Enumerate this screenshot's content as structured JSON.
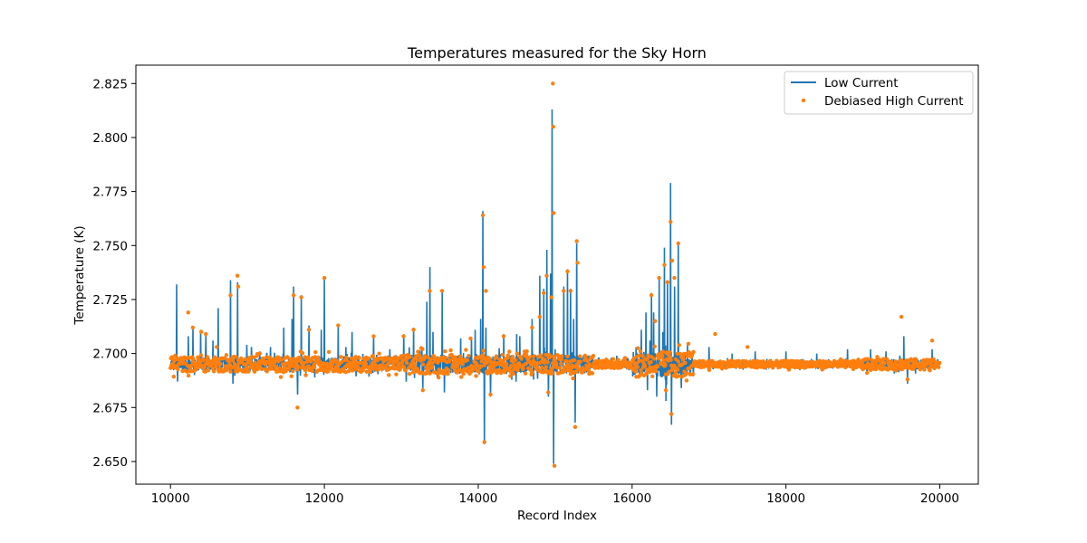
{
  "chart_data": {
    "type": "line",
    "title": "Temperatures measured for the Sky Horn",
    "xlabel": "Record Index",
    "ylabel": "Temperature (K)",
    "xlim": [
      9550,
      20500
    ],
    "ylim": [
      2.6395,
      2.8335
    ],
    "xticks": [
      10000,
      12000,
      14000,
      16000,
      18000,
      20000
    ],
    "xtick_labels": [
      "10000",
      "12000",
      "14000",
      "16000",
      "18000",
      "20000"
    ],
    "yticks": [
      2.65,
      2.675,
      2.7,
      2.725,
      2.75,
      2.775,
      2.8,
      2.825
    ],
    "ytick_labels": [
      "2.650",
      "2.675",
      "2.700",
      "2.725",
      "2.750",
      "2.775",
      "2.800",
      "2.825"
    ],
    "grid": false,
    "legend_position": "top-right",
    "baseline": 2.695,
    "record_range": [
      10000,
      20000
    ],
    "series": [
      {
        "name": "Low Current",
        "style": "line",
        "color": "#1f77b4",
        "spikes": [
          [
            10080,
            2.732
          ],
          [
            10090,
            2.687
          ],
          [
            10230,
            2.708
          ],
          [
            10290,
            2.712
          ],
          [
            10310,
            2.69
          ],
          [
            10390,
            2.711
          ],
          [
            10460,
            2.709
          ],
          [
            10550,
            2.706
          ],
          [
            10620,
            2.721
          ],
          [
            10700,
            2.691
          ],
          [
            10780,
            2.734
          ],
          [
            10810,
            2.686
          ],
          [
            10870,
            2.733
          ],
          [
            10990,
            2.704
          ],
          [
            11050,
            2.703
          ],
          [
            11160,
            2.701
          ],
          [
            11300,
            2.703
          ],
          [
            11470,
            2.712
          ],
          [
            11580,
            2.716
          ],
          [
            11600,
            2.731
          ],
          [
            11650,
            2.681
          ],
          [
            11700,
            2.727
          ],
          [
            11800,
            2.713
          ],
          [
            11960,
            2.711
          ],
          [
            12000,
            2.735
          ],
          [
            12180,
            2.713
          ],
          [
            12280,
            2.703
          ],
          [
            12360,
            2.71
          ],
          [
            12640,
            2.708
          ],
          [
            12850,
            2.702
          ],
          [
            13030,
            2.709
          ],
          [
            13160,
            2.712
          ],
          [
            13280,
            2.684
          ],
          [
            13330,
            2.724
          ],
          [
            13370,
            2.74
          ],
          [
            13410,
            2.71
          ],
          [
            13530,
            2.729
          ],
          [
            13560,
            2.682
          ],
          [
            13770,
            2.707
          ],
          [
            13910,
            2.707
          ],
          [
            13960,
            2.711
          ],
          [
            14030,
            2.716
          ],
          [
            14060,
            2.766
          ],
          [
            14080,
            2.658
          ],
          [
            14100,
            2.712
          ],
          [
            14160,
            2.68
          ],
          [
            14330,
            2.709
          ],
          [
            14500,
            2.709
          ],
          [
            14540,
            2.708
          ],
          [
            14700,
            2.716
          ],
          [
            14800,
            2.736
          ],
          [
            14850,
            2.73
          ],
          [
            14890,
            2.748
          ],
          [
            14910,
            2.68
          ],
          [
            14940,
            2.737
          ],
          [
            14960,
            2.813
          ],
          [
            14980,
            2.649
          ],
          [
            15000,
            2.702
          ],
          [
            15110,
            2.731
          ],
          [
            15160,
            2.739
          ],
          [
            15200,
            2.73
          ],
          [
            15240,
            2.716
          ],
          [
            15260,
            2.668
          ],
          [
            15280,
            2.751
          ],
          [
            15500,
            2.693
          ],
          [
            15800,
            2.699
          ],
          [
            16050,
            2.703
          ],
          [
            16120,
            2.711
          ],
          [
            16180,
            2.719
          ],
          [
            16200,
            2.683
          ],
          [
            16230,
            2.706
          ],
          [
            16250,
            2.728
          ],
          [
            16280,
            2.719
          ],
          [
            16320,
            2.68
          ],
          [
            16350,
            2.735
          ],
          [
            16400,
            2.71
          ],
          [
            16420,
            2.749
          ],
          [
            16440,
            2.678
          ],
          [
            16460,
            2.734
          ],
          [
            16500,
            2.779
          ],
          [
            16510,
            2.667
          ],
          [
            16550,
            2.731
          ],
          [
            16600,
            2.751
          ],
          [
            16640,
            2.684
          ],
          [
            16720,
            2.704
          ],
          [
            17000,
            2.703
          ],
          [
            17300,
            2.7
          ],
          [
            17600,
            2.701
          ],
          [
            18000,
            2.701
          ],
          [
            18400,
            2.7
          ],
          [
            18800,
            2.702
          ],
          [
            19100,
            2.702
          ],
          [
            19300,
            2.701
          ],
          [
            19530,
            2.708
          ],
          [
            19580,
            2.686
          ],
          [
            19900,
            2.702
          ]
        ]
      },
      {
        "name": "Debiased High Current",
        "style": "scatter",
        "color": "#ff7f0e",
        "outliers": [
          [
            10060,
            2.699
          ],
          [
            10230,
            2.719
          ],
          [
            10290,
            2.712
          ],
          [
            10400,
            2.71
          ],
          [
            10460,
            2.709
          ],
          [
            10600,
            2.703
          ],
          [
            10780,
            2.727
          ],
          [
            10870,
            2.736
          ],
          [
            10880,
            2.731
          ],
          [
            11160,
            2.7
          ],
          [
            11600,
            2.727
          ],
          [
            11650,
            2.675
          ],
          [
            11700,
            2.726
          ],
          [
            11800,
            2.711
          ],
          [
            12000,
            2.735
          ],
          [
            12180,
            2.713
          ],
          [
            12640,
            2.708
          ],
          [
            13030,
            2.708
          ],
          [
            13160,
            2.711
          ],
          [
            13280,
            2.683
          ],
          [
            13370,
            2.729
          ],
          [
            13530,
            2.729
          ],
          [
            13900,
            2.707
          ],
          [
            14060,
            2.764
          ],
          [
            14070,
            2.74
          ],
          [
            14080,
            2.659
          ],
          [
            14100,
            2.729
          ],
          [
            14160,
            2.681
          ],
          [
            14330,
            2.708
          ],
          [
            14700,
            2.712
          ],
          [
            14800,
            2.717
          ],
          [
            14850,
            2.728
          ],
          [
            14890,
            2.736
          ],
          [
            14910,
            2.682
          ],
          [
            14950,
            2.726
          ],
          [
            14970,
            2.825
          ],
          [
            14975,
            2.805
          ],
          [
            14980,
            2.765
          ],
          [
            14990,
            2.648
          ],
          [
            15110,
            2.729
          ],
          [
            15160,
            2.738
          ],
          [
            15200,
            2.729
          ],
          [
            15260,
            2.666
          ],
          [
            15280,
            2.752
          ],
          [
            15290,
            2.742
          ],
          [
            16250,
            2.727
          ],
          [
            16300,
            2.715
          ],
          [
            16350,
            2.735
          ],
          [
            16420,
            2.741
          ],
          [
            16440,
            2.683
          ],
          [
            16460,
            2.733
          ],
          [
            16500,
            2.761
          ],
          [
            16510,
            2.672
          ],
          [
            16520,
            2.743
          ],
          [
            16550,
            2.735
          ],
          [
            16600,
            2.751
          ],
          [
            17080,
            2.709
          ],
          [
            17500,
            2.703
          ],
          [
            19500,
            2.717
          ],
          [
            19580,
            2.688
          ],
          [
            19900,
            2.706
          ]
        ]
      }
    ]
  }
}
